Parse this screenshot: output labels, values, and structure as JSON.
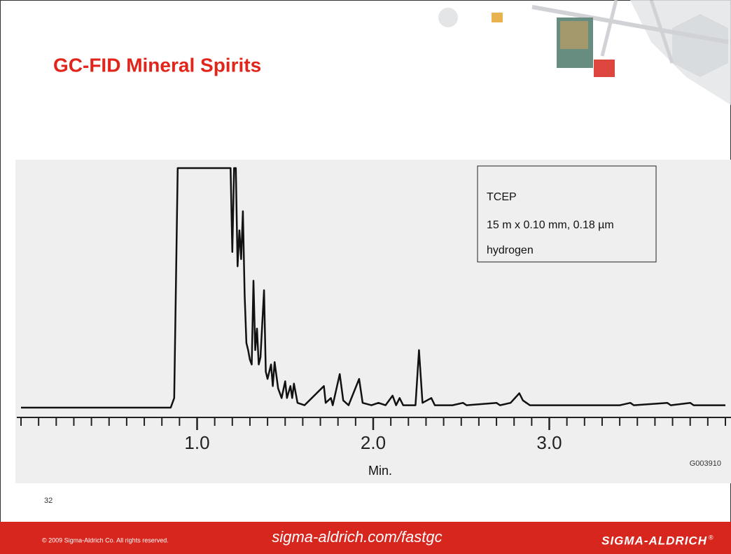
{
  "slide": {
    "title": "GC-FID Mineral Spirits",
    "page_number": "32",
    "footer": {
      "copyright": "© 2009 Sigma-Aldrich Co. All rights reserved.",
      "url": "sigma-aldrich.com/fastgc",
      "brand": "SIGMA-ALDRICH",
      "brand_mark": "®"
    }
  },
  "chart_data": {
    "type": "line",
    "xlabel": "Min.",
    "note": "G003910",
    "annotations": [
      "TCEP",
      "15 m x 0.10 mm, 0.18 µm",
      "hydrogen"
    ],
    "color": "#111111",
    "x": [
      0.0,
      0.85,
      0.87,
      0.89,
      1.19,
      1.2,
      1.21,
      1.22,
      1.23,
      1.24,
      1.25,
      1.26,
      1.27,
      1.28,
      1.29,
      1.3,
      1.31,
      1.32,
      1.33,
      1.34,
      1.35,
      1.36,
      1.38,
      1.39,
      1.4,
      1.42,
      1.43,
      1.44,
      1.46,
      1.48,
      1.5,
      1.51,
      1.53,
      1.54,
      1.55,
      1.57,
      1.61,
      1.72,
      1.73,
      1.76,
      1.77,
      1.81,
      1.83,
      1.86,
      1.92,
      1.94,
      1.99,
      2.03,
      2.07,
      2.11,
      2.13,
      2.15,
      2.17,
      2.24,
      2.26,
      2.28,
      2.33,
      2.35,
      2.45,
      2.51,
      2.53,
      2.7,
      2.72,
      2.78,
      2.83,
      2.85,
      2.87,
      2.89,
      3.2,
      3.4,
      3.46,
      3.48,
      3.67,
      3.69,
      3.8,
      3.82,
      4.0
    ],
    "values": [
      0,
      0,
      4,
      100,
      100,
      65,
      100,
      100,
      59,
      74,
      62,
      82,
      47,
      27,
      24,
      20,
      18,
      53,
      24,
      33,
      18,
      21,
      49,
      15,
      12,
      18,
      9,
      19,
      8,
      4,
      11,
      4,
      9,
      4,
      10,
      2,
      1,
      9,
      2,
      4,
      1,
      14,
      3,
      1,
      12,
      2,
      1,
      2,
      1,
      5,
      1,
      4,
      1,
      1,
      24,
      2,
      4,
      1,
      1,
      2,
      1,
      2,
      1,
      2,
      6,
      3,
      2,
      1,
      1,
      1,
      2,
      1,
      2,
      1,
      2,
      1,
      1
    ],
    "xlim": [
      0,
      4
    ],
    "ylim": [
      0,
      100
    ],
    "xticks": [
      {
        "value": 1,
        "label": "1.0"
      },
      {
        "value": 2,
        "label": "2.0"
      },
      {
        "value": 3,
        "label": "3.0"
      }
    ],
    "xminorticks": [
      0,
      0.1,
      0.2,
      0.3,
      0.4,
      0.5,
      0.6,
      0.7,
      0.8,
      0.9,
      1.1,
      1.2,
      1.3,
      1.4,
      1.5,
      1.6,
      1.7,
      1.8,
      1.9,
      2.1,
      2.2,
      2.3,
      2.4,
      2.5,
      2.6,
      2.7,
      2.8,
      2.9,
      3.1,
      3.2,
      3.3,
      3.4,
      3.5,
      3.6,
      3.7,
      3.8,
      3.9,
      4
    ]
  }
}
